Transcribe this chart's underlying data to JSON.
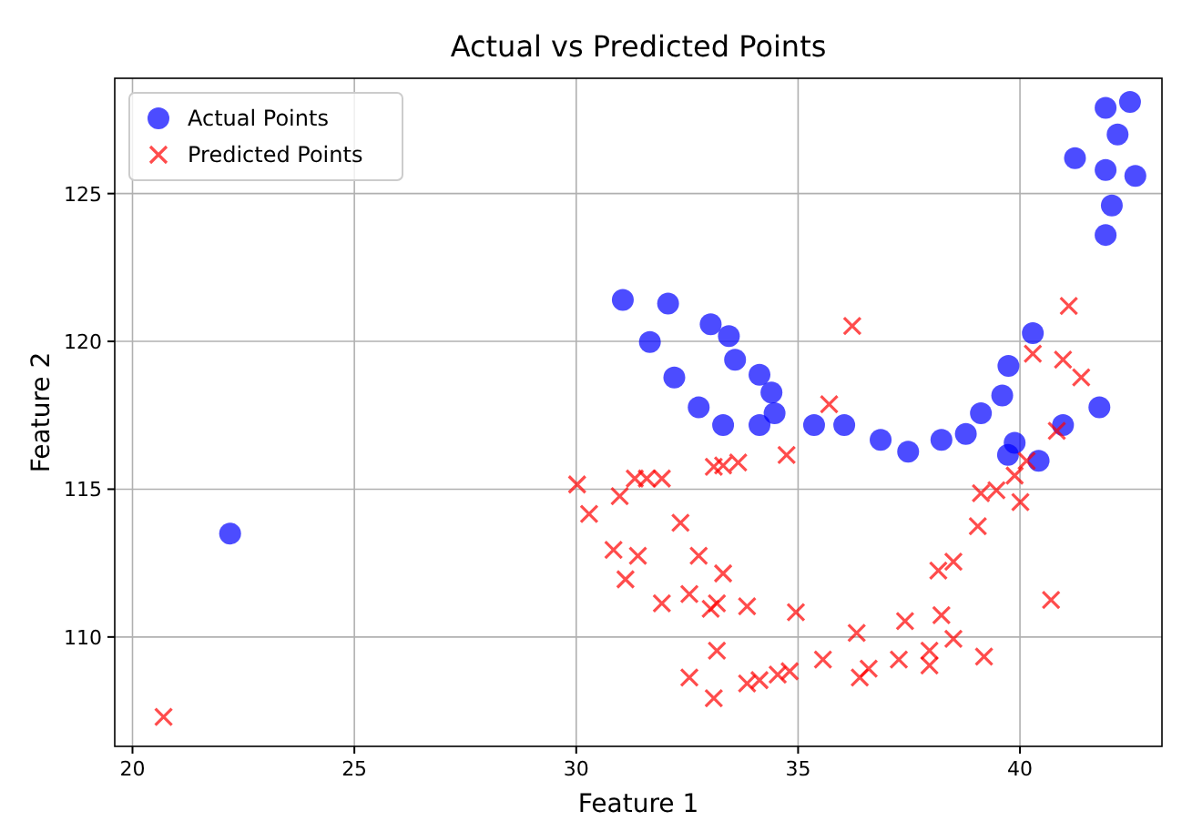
{
  "chart_data": {
    "type": "scatter",
    "title": "Actual vs Predicted Points",
    "xlabel": "Feature 1",
    "ylabel": "Feature 2",
    "xlim": [
      19.6,
      43.2
    ],
    "ylim": [
      106.3,
      128.9
    ],
    "xticks": [
      20,
      25,
      30,
      35,
      40
    ],
    "yticks": [
      110,
      115,
      120,
      125
    ],
    "grid": true,
    "legend": "top left",
    "series": [
      {
        "name": "Actual Points",
        "color": "#0000ff",
        "marker": "circle",
        "x": [
          22.2,
          31.05,
          31.66,
          32.21,
          32.76,
          33.31,
          34.13,
          32.07,
          33.03,
          33.44,
          33.58,
          34.13,
          34.4,
          34.47,
          35.36,
          36.04,
          36.86,
          37.48,
          38.23,
          38.78,
          39.12,
          39.88,
          40.42,
          39.73,
          40.97,
          41.79,
          39.6,
          39.74,
          40.29,
          42.48,
          41.93,
          42.2,
          41.24,
          41.93,
          42.6,
          42.07,
          41.93
        ],
        "values": [
          113.5,
          121.4,
          119.98,
          118.78,
          117.77,
          117.17,
          117.17,
          121.28,
          120.58,
          120.18,
          119.38,
          118.87,
          118.27,
          117.57,
          117.17,
          117.17,
          116.67,
          116.27,
          116.67,
          116.87,
          117.57,
          116.57,
          115.96,
          116.16,
          117.17,
          117.77,
          118.17,
          119.17,
          120.28,
          128.1,
          127.9,
          127.0,
          126.2,
          125.8,
          125.6,
          124.6,
          123.6
        ]
      },
      {
        "name": "Predicted Points",
        "color": "#ff0000",
        "marker": "cross",
        "x": [
          20.7,
          30.02,
          30.29,
          30.84,
          31.11,
          31.93,
          33.03,
          33.85,
          34.95,
          36.32,
          37.41,
          38.23,
          30.98,
          32.35,
          32.76,
          33.31,
          33.17,
          38.5,
          39.19,
          37.96,
          40.7,
          38.5,
          39.05,
          40.97,
          41.1,
          41.38,
          40.83,
          40.29,
          40.15,
          40.01,
          36.22,
          35.7,
          34.74,
          33.1,
          33.31,
          33.65,
          31.32,
          31.59,
          31.93,
          32.55,
          33.1,
          33.17,
          33.85,
          34.13,
          34.54,
          34.81,
          35.56,
          36.39,
          36.59,
          37.27,
          37.96,
          39.12,
          39.47,
          39.88,
          31.39,
          32.55,
          38.16
        ],
        "values": [
          107.3,
          115.16,
          114.16,
          112.95,
          111.95,
          111.14,
          110.95,
          111.04,
          110.84,
          110.14,
          110.54,
          110.74,
          114.76,
          113.86,
          112.75,
          112.15,
          111.14,
          109.94,
          109.34,
          109.54,
          111.25,
          112.55,
          113.75,
          119.38,
          121.2,
          118.78,
          116.97,
          119.58,
          115.96,
          114.56,
          120.52,
          117.87,
          116.16,
          115.76,
          115.8,
          115.9,
          115.36,
          115.36,
          115.36,
          108.63,
          107.93,
          109.54,
          108.43,
          108.54,
          108.73,
          108.84,
          109.24,
          108.63,
          108.93,
          109.24,
          109.04,
          114.86,
          114.96,
          115.46,
          112.75,
          111.45,
          112.25
        ]
      }
    ]
  }
}
